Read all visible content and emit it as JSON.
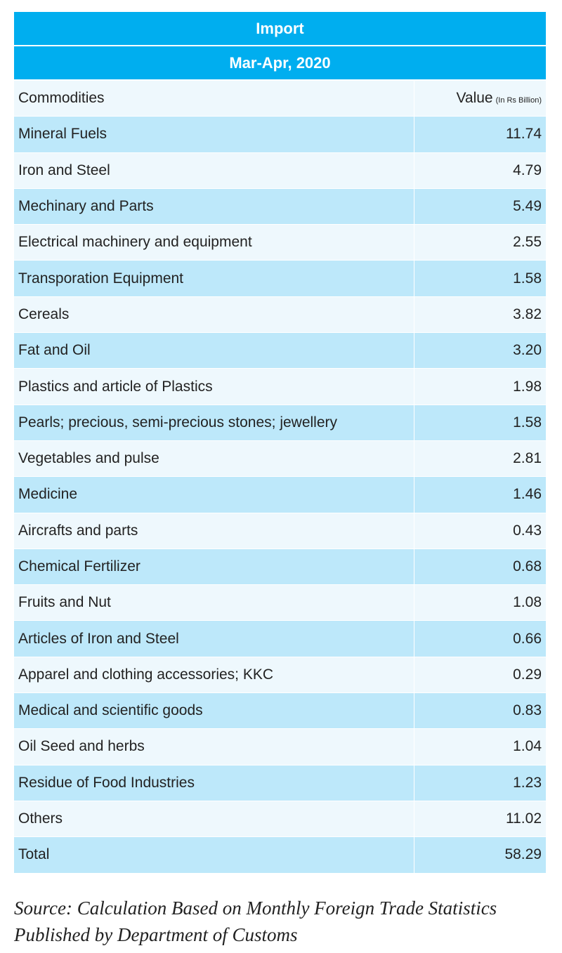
{
  "table": {
    "title": "Import",
    "period": "Mar-Apr, 2020",
    "col_commodity": "Commodities",
    "col_value": "Value",
    "col_value_unit": "(In Rs Billion)",
    "rows": [
      {
        "name": "Mineral Fuels",
        "value": "11.74"
      },
      {
        "name": "Iron and Steel",
        "value": "4.79"
      },
      {
        "name": "Mechinary and Parts",
        "value": "5.49"
      },
      {
        "name": "Electrical machinery and equipment",
        "value": "2.55"
      },
      {
        "name": "Transporation Equipment",
        "value": "1.58"
      },
      {
        "name": "Cereals",
        "value": "3.82"
      },
      {
        "name": "Fat and Oil",
        "value": "3.20"
      },
      {
        "name": "Plastics and article of Plastics",
        "value": "1.98"
      },
      {
        "name": "Pearls; precious, semi-precious stones;  jewellery",
        "value": "1.58"
      },
      {
        "name": "Vegetables and pulse",
        "value": "2.81"
      },
      {
        "name": "Medicine",
        "value": "1.46"
      },
      {
        "name": "Aircrafts and parts",
        "value": "0.43"
      },
      {
        "name": "Chemical Fertilizer",
        "value": "0.68"
      },
      {
        "name": "Fruits and Nut",
        "value": "1.08"
      },
      {
        "name": "Articles of Iron and Steel",
        "value": "0.66"
      },
      {
        "name": "Apparel and clothing accessories; KKC",
        "value": "0.29"
      },
      {
        "name": "Medical and scientific goods",
        "value": "0.83"
      },
      {
        "name": "Oil Seed  and herbs",
        "value": "1.04"
      },
      {
        "name": "Residue of Food Industries",
        "value": "1.23"
      },
      {
        "name": "Others",
        "value": "11.02"
      }
    ],
    "total": {
      "name": "Total",
      "value": "58.29"
    }
  },
  "source": "Source: Calculation Based on Monthly Foreign Trade Statistics Published by Department of Customs",
  "colors": {
    "header": "#00aeef",
    "row_blue": "#bde8fa",
    "row_light": "#eef8fd"
  }
}
